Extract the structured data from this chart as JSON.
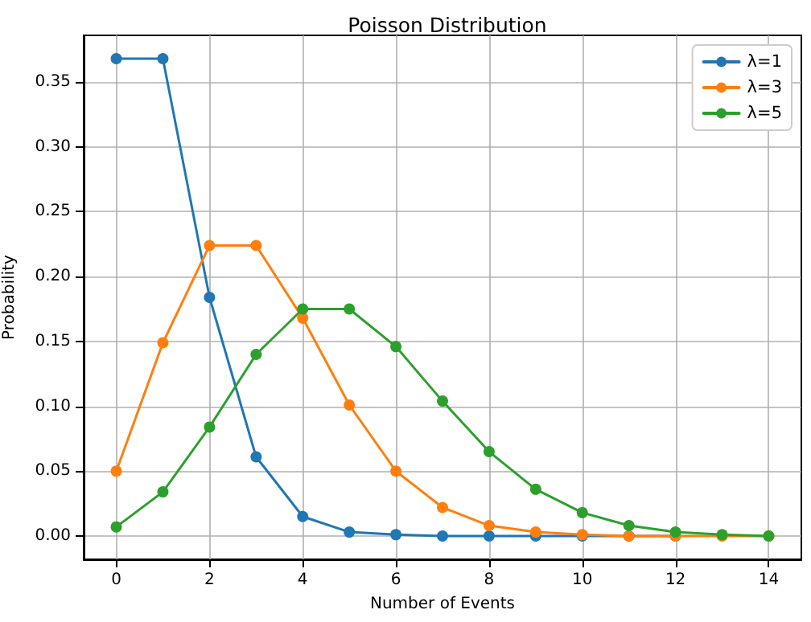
{
  "chart_data": {
    "type": "line",
    "title": "Poisson Distribution",
    "xlabel": "Number of Events",
    "ylabel": "Probability",
    "x": [
      0,
      1,
      2,
      3,
      4,
      5,
      6,
      7,
      8,
      9,
      10,
      11,
      12,
      13,
      14
    ],
    "series": [
      {
        "name": "λ=1",
        "color": "#1f77b4",
        "values": [
          0.368,
          0.368,
          0.184,
          0.061,
          0.015,
          0.003,
          0.001,
          0.0,
          0.0,
          0.0,
          0.0,
          0.0,
          0.0,
          null,
          null
        ]
      },
      {
        "name": "λ=3",
        "color": "#ff7f0e",
        "values": [
          0.05,
          0.149,
          0.224,
          0.224,
          0.168,
          0.101,
          0.05,
          0.022,
          0.008,
          0.003,
          0.001,
          0.0,
          0.0,
          0.0,
          0.0
        ]
      },
      {
        "name": "λ=5",
        "color": "#2ca02c",
        "values": [
          0.007,
          0.034,
          0.084,
          0.14,
          0.175,
          0.175,
          0.146,
          0.104,
          0.065,
          0.036,
          0.018,
          0.008,
          0.003,
          0.001,
          0.0
        ]
      }
    ],
    "xlim": [
      -0.7,
      14.7
    ],
    "xticks": [
      0,
      2,
      4,
      6,
      8,
      10,
      12,
      14
    ],
    "ylim": [
      -0.018,
      0.386
    ],
    "yticks": [
      {
        "value": 0,
        "label": "0.00"
      },
      {
        "value": 0.05,
        "label": "0.05"
      },
      {
        "value": 0.1,
        "label": "0.10"
      },
      {
        "value": 0.15,
        "label": "0.15"
      },
      {
        "value": 0.2,
        "label": "0.20"
      },
      {
        "value": 0.25,
        "label": "0.25"
      },
      {
        "value": 0.3,
        "label": "0.30"
      },
      {
        "value": 0.35,
        "label": "0.35"
      }
    ],
    "grid": true,
    "legend": "top right",
    "marker": "circle",
    "line_style": "solid"
  }
}
